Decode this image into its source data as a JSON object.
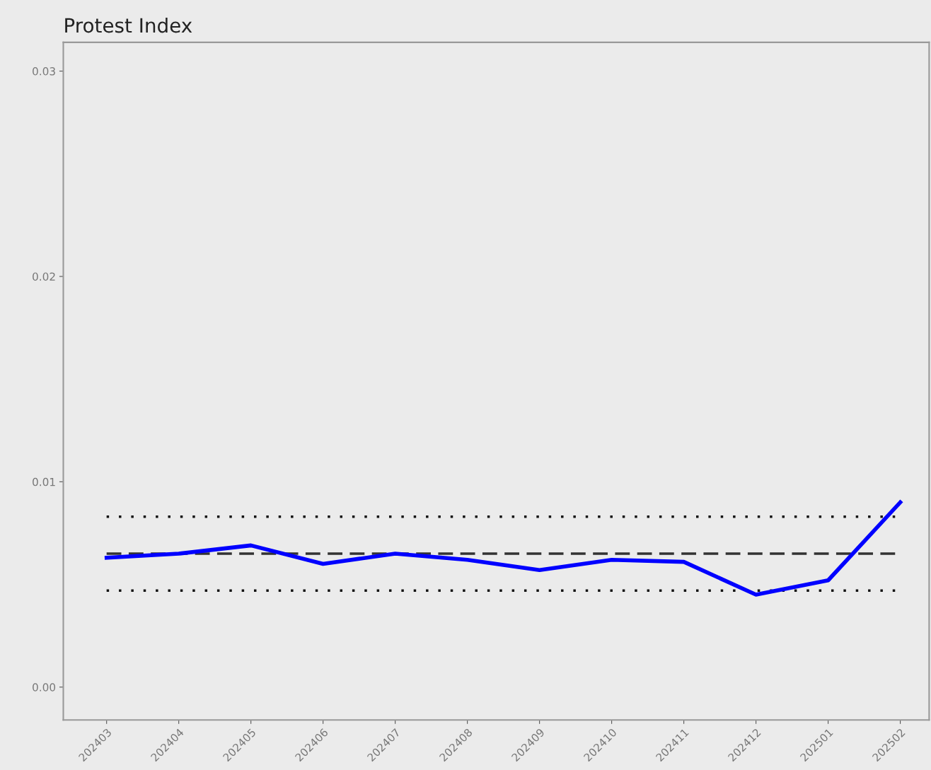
{
  "chart_data": {
    "type": "line",
    "title": "Protest Index",
    "categories": [
      "202403",
      "202404",
      "202405",
      "202406",
      "202407",
      "202408",
      "202409",
      "202410",
      "202411",
      "202412",
      "202501",
      "202502"
    ],
    "series": [
      {
        "color": "#0000ff",
        "values": [
          0.0063,
          0.0065,
          0.0069,
          0.006,
          0.0065,
          0.0062,
          0.0057,
          0.0062,
          0.0061,
          0.0045,
          0.0052,
          0.009
        ]
      }
    ],
    "ylim": [
      -0.0016,
      0.0314
    ],
    "yticks": [
      {
        "value": 0,
        "label": "0.00"
      },
      {
        "value": 0.01,
        "label": "0.01"
      },
      {
        "value": 0.02,
        "label": "0.02"
      },
      {
        "value": 0.03,
        "label": "0.03"
      }
    ],
    "ref_lines": [
      {
        "axis": "y",
        "value": 0.0065,
        "label": null,
        "color": "#333333",
        "line_style": "dashed"
      },
      {
        "axis": "y",
        "value": 0.0083,
        "label": null,
        "color": "#111111",
        "line_style": "dotted"
      },
      {
        "axis": "y",
        "value": 0.0047,
        "label": null,
        "color": "#111111",
        "line_style": "dotted"
      }
    ],
    "grid": false,
    "line_style": "solid",
    "marker": "none"
  }
}
